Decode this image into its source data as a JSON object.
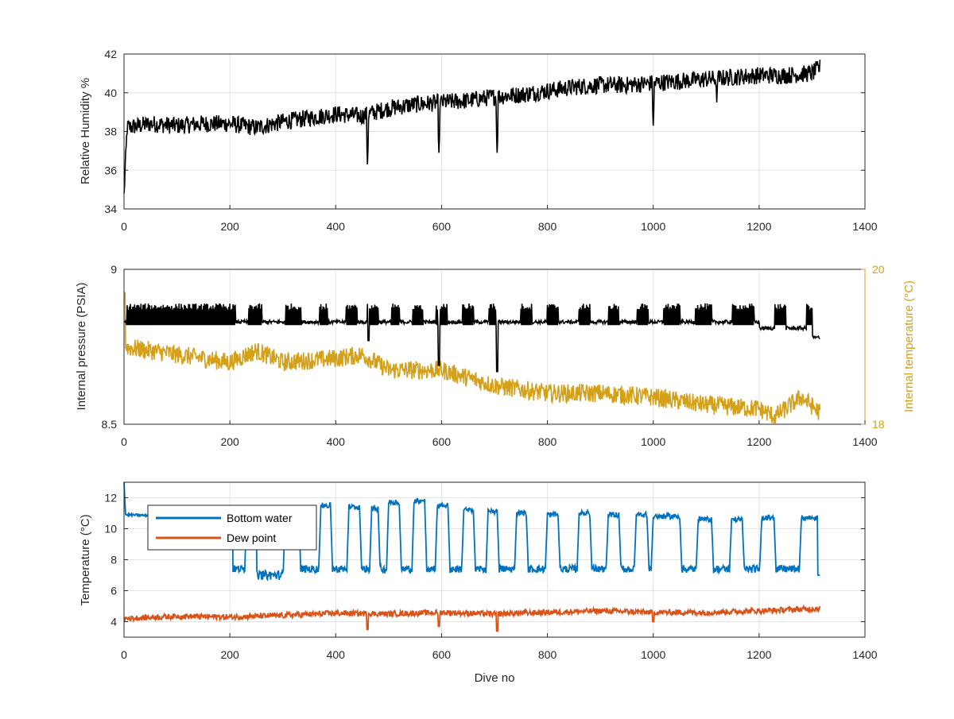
{
  "chart_data": [
    {
      "type": "line",
      "title": "",
      "xlabel": "",
      "ylabel": "Relative Humidity %",
      "xlim": [
        0,
        1400
      ],
      "ylim": [
        34,
        42
      ],
      "xticks": [
        "0",
        "200",
        "400",
        "600",
        "800",
        "1000",
        "1200",
        "1400"
      ],
      "yticks": [
        "34",
        "36",
        "38",
        "40",
        "42"
      ],
      "grid": true,
      "series": [
        {
          "color": "#000000",
          "trend": [
            [
              0,
              34.8
            ],
            [
              3,
              36.5
            ],
            [
              6,
              38.2
            ],
            [
              50,
              38.4
            ],
            [
              100,
              38.3
            ],
            [
              150,
              38.4
            ],
            [
              200,
              38.4
            ],
            [
              250,
              38.2
            ],
            [
              300,
              38.5
            ],
            [
              350,
              38.7
            ],
            [
              400,
              38.9
            ],
            [
              450,
              38.8
            ],
            [
              500,
              39.2
            ],
            [
              550,
              39.4
            ],
            [
              600,
              39.5
            ],
            [
              650,
              39.6
            ],
            [
              700,
              39.8
            ],
            [
              750,
              39.9
            ],
            [
              800,
              40.1
            ],
            [
              850,
              40.3
            ],
            [
              900,
              40.4
            ],
            [
              950,
              40.4
            ],
            [
              1000,
              40.5
            ],
            [
              1050,
              40.6
            ],
            [
              1100,
              40.7
            ],
            [
              1150,
              40.8
            ],
            [
              1200,
              40.9
            ],
            [
              1250,
              40.9
            ],
            [
              1300,
              41.0
            ],
            [
              1315,
              41.3
            ]
          ],
          "noise": 0.45,
          "dips": [
            [
              460,
              36.3
            ],
            [
              595,
              36.9
            ],
            [
              705,
              36.9
            ],
            [
              1000,
              38.3
            ],
            [
              1120,
              39.5
            ]
          ]
        }
      ]
    },
    {
      "type": "line",
      "title": "",
      "xlabel": "",
      "ylabel": "Internal pressure (PSIA)",
      "y2label": "Internal temperature (°C)",
      "xlim": [
        0,
        1400
      ],
      "ylim": [
        8.5,
        9
      ],
      "y2lim": [
        18,
        20
      ],
      "xticks": [
        "0",
        "200",
        "400",
        "600",
        "800",
        "1000",
        "1200",
        "1400"
      ],
      "yticks": [
        "8.5",
        "9"
      ],
      "y2ticks": [
        "18",
        "20"
      ],
      "grid": true,
      "series": [
        {
          "axis": "left",
          "color": "#000000",
          "base": 8.83,
          "burst_high": 8.88,
          "burst_low": 8.83,
          "bursts": [
            [
              5,
              210
            ],
            [
              235,
              260
            ],
            [
              305,
              335
            ],
            [
              370,
              385
            ],
            [
              420,
              440
            ],
            [
              460,
              480
            ],
            [
              505,
              520
            ],
            [
              545,
              565
            ],
            [
              590,
              610
            ],
            [
              640,
              660
            ],
            [
              690,
              705
            ],
            [
              750,
              770
            ],
            [
              800,
              820
            ],
            [
              860,
              880
            ],
            [
              915,
              935
            ],
            [
              970,
              990
            ],
            [
              1020,
              1050
            ],
            [
              1080,
              1110
            ],
            [
              1150,
              1190
            ],
            [
              1230,
              1250
            ],
            [
              1290,
              1310
            ]
          ],
          "dips": [
            [
              462,
              8.77
            ],
            [
              595,
              8.69
            ],
            [
              705,
              8.67
            ]
          ],
          "end": [
            [
              1200,
              8.78
            ],
            [
              1315,
              8.78
            ]
          ]
        },
        {
          "axis": "right",
          "color": "#d4a017",
          "trend": [
            [
              0,
              19.0
            ],
            [
              100,
              18.9
            ],
            [
              200,
              18.8
            ],
            [
              250,
              18.95
            ],
            [
              300,
              18.8
            ],
            [
              400,
              18.85
            ],
            [
              450,
              18.9
            ],
            [
              500,
              18.7
            ],
            [
              600,
              18.7
            ],
            [
              700,
              18.5
            ],
            [
              800,
              18.4
            ],
            [
              900,
              18.4
            ],
            [
              1000,
              18.35
            ],
            [
              1100,
              18.25
            ],
            [
              1200,
              18.2
            ],
            [
              1230,
              18.1
            ],
            [
              1280,
              18.35
            ],
            [
              1315,
              18.15
            ]
          ],
          "noise": 0.12
        }
      ]
    },
    {
      "type": "line",
      "title": "",
      "xlabel": "Dive no",
      "ylabel": "Temperature (°C)",
      "xlim": [
        0,
        1400
      ],
      "ylim": [
        3,
        13
      ],
      "xticks": [
        "0",
        "200",
        "400",
        "600",
        "800",
        "1000",
        "1200",
        "1400"
      ],
      "yticks": [
        "4",
        "6",
        "8",
        "10",
        "12"
      ],
      "grid": true,
      "legend": "top-left",
      "series": [
        {
          "name": "Bottom water",
          "color": "#0072bd",
          "start": [
            [
              0,
              13.0
            ],
            [
              3,
              10.9
            ],
            [
              100,
              10.8
            ],
            [
              205,
              10.9
            ]
          ],
          "low": 7.4,
          "highs": [
            [
              232,
              250,
              10.8
            ],
            [
              305,
              330,
              11.0
            ],
            [
              372,
              390,
              11.5
            ],
            [
              425,
              445,
              11.4
            ],
            [
              468,
              480,
              11.3
            ],
            [
              500,
              520,
              11.7
            ],
            [
              548,
              568,
              11.8
            ],
            [
              592,
              612,
              11.5
            ],
            [
              642,
              660,
              11.2
            ],
            [
              688,
              705,
              11.1
            ],
            [
              742,
              760,
              11.0
            ],
            [
              800,
              820,
              10.9
            ],
            [
              860,
              880,
              11.0
            ],
            [
              915,
              935,
              10.9
            ],
            [
              968,
              988,
              10.9
            ],
            [
              1000,
              1050,
              10.8
            ],
            [
              1085,
              1110,
              10.6
            ],
            [
              1148,
              1168,
              10.6
            ],
            [
              1205,
              1228,
              10.7
            ],
            [
              1280,
              1310,
              10.7
            ]
          ],
          "end": 7.0
        },
        {
          "name": "Dew point",
          "color": "#d95319",
          "trend": [
            [
              0,
              4.2
            ],
            [
              100,
              4.35
            ],
            [
              200,
              4.3
            ],
            [
              300,
              4.4
            ],
            [
              400,
              4.55
            ],
            [
              500,
              4.5
            ],
            [
              600,
              4.6
            ],
            [
              700,
              4.5
            ],
            [
              800,
              4.6
            ],
            [
              900,
              4.7
            ],
            [
              1000,
              4.6
            ],
            [
              1100,
              4.6
            ],
            [
              1200,
              4.7
            ],
            [
              1315,
              4.85
            ]
          ],
          "noise": 0.18,
          "dips": [
            [
              460,
              3.5
            ],
            [
              595,
              3.7
            ],
            [
              705,
              3.4
            ],
            [
              1000,
              4.0
            ]
          ]
        }
      ]
    }
  ]
}
